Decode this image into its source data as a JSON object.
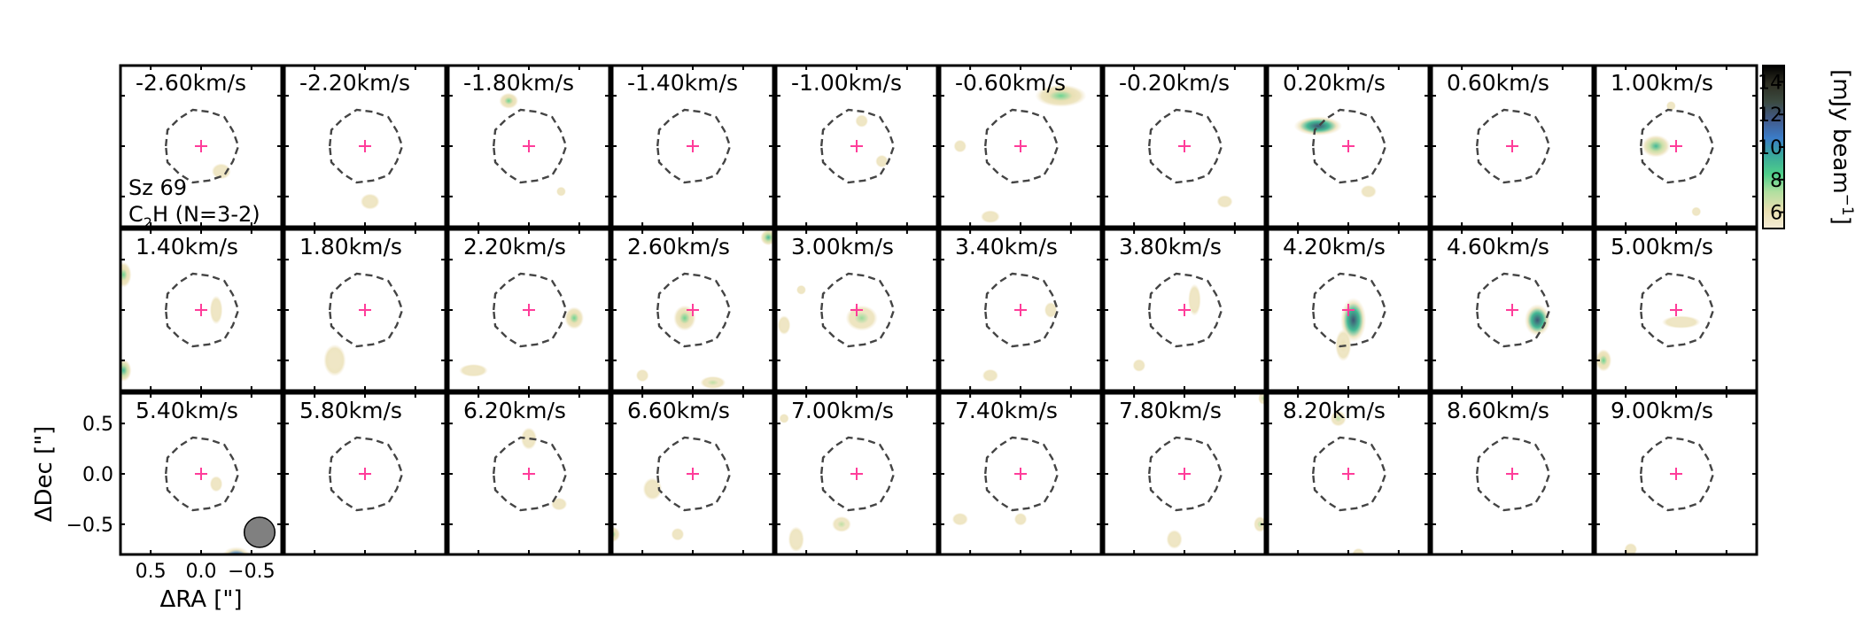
{
  "figure": {
    "source_name": "Sz 69",
    "molecule_main": "C",
    "molecule_sub": "2",
    "molecule_rest": "H (N=3-2)"
  },
  "chart_data": {
    "type": "heatmap",
    "description_series": "channel maps",
    "units_label": "km/s",
    "channels": [
      "-2.60",
      "-2.20",
      "-1.80",
      "-1.40",
      "-1.00",
      "-0.60",
      "-0.20",
      "0.20",
      "0.60",
      "1.00",
      "1.40",
      "1.80",
      "2.20",
      "2.60",
      "3.00",
      "3.40",
      "3.80",
      "4.20",
      "4.60",
      "5.00",
      "5.40",
      "5.80",
      "6.20",
      "6.60",
      "7.00",
      "7.40",
      "7.80",
      "8.20",
      "8.60",
      "9.00"
    ],
    "grid": {
      "rows": 3,
      "cols": 10
    },
    "xlabel": "ΔRA [\"]",
    "ylabel": "ΔDec [\"]",
    "xticks": [
      "0.5",
      "0.0",
      "−0.5"
    ],
    "xtick_values": [
      0.5,
      0.0,
      -0.5
    ],
    "yticks": [
      "0.5",
      "0.0",
      "−0.5"
    ],
    "ytick_values": [
      0.5,
      0.0,
      -0.5
    ],
    "xlim": [
      0.8,
      -0.8
    ],
    "ylim": [
      -0.8,
      0.8
    ],
    "colorbar": {
      "label": "[mJy beam",
      "label_sup": "−1",
      "label_end": "]",
      "ticks": [
        "6",
        "8",
        "10",
        "12",
        "14"
      ],
      "tick_values": [
        6,
        8,
        10,
        12,
        14
      ],
      "range": [
        5,
        15
      ],
      "colors": [
        "#f5ecd6",
        "#e8dfb0",
        "#b3dfa0",
        "#4fcf8a",
        "#3aa99a",
        "#3b7cc8",
        "#425a8a",
        "#3b4a40",
        "#2e2e22",
        "#000000"
      ]
    },
    "beam": {
      "major_arcsec": 0.32,
      "minor_arcsec": 0.26
    },
    "mask_color": "#444444",
    "center_marker_color": "#ff3d9a",
    "emission_blobs": [
      [
        {
          "x": -0.2,
          "y": -0.25,
          "peak": 5.5,
          "sx": 0.06,
          "sy": 0.05
        }
      ],
      [
        {
          "x": -0.05,
          "y": -0.55,
          "peak": 5.5,
          "sx": 0.06,
          "sy": 0.05
        }
      ],
      [
        {
          "x": 0.2,
          "y": 0.45,
          "peak": 8,
          "sx": 0.06,
          "sy": 0.05
        },
        {
          "x": -0.32,
          "y": -0.45,
          "peak": 5.5,
          "sx": 0.03,
          "sy": 0.03
        }
      ],
      [],
      [
        {
          "x": -0.25,
          "y": -0.15,
          "peak": 5.5,
          "sx": 0.04,
          "sy": 0.04
        },
        {
          "x": -0.05,
          "y": 0.25,
          "peak": 5.5,
          "sx": 0.04,
          "sy": 0.04
        }
      ],
      [
        {
          "x": -0.4,
          "y": 0.5,
          "peak": 8,
          "sx": 0.16,
          "sy": 0.07
        },
        {
          "x": 0.6,
          "y": 0.0,
          "peak": 5.5,
          "sx": 0.04,
          "sy": 0.04
        },
        {
          "x": 0.3,
          "y": -0.7,
          "peak": 5.5,
          "sx": 0.06,
          "sy": 0.04
        }
      ],
      [
        {
          "x": -0.4,
          "y": -0.55,
          "peak": 5.5,
          "sx": 0.05,
          "sy": 0.04
        }
      ],
      [
        {
          "x": 0.3,
          "y": 0.2,
          "peak": 12,
          "sx": 0.15,
          "sy": 0.06
        },
        {
          "x": -0.2,
          "y": -0.45,
          "peak": 5.5,
          "sx": 0.05,
          "sy": 0.04
        }
      ],
      [],
      [
        {
          "x": 0.2,
          "y": 0.0,
          "peak": 9,
          "sx": 0.09,
          "sy": 0.07
        },
        {
          "x": 0.05,
          "y": 0.4,
          "peak": 5.5,
          "sx": 0.03,
          "sy": 0.03
        },
        {
          "x": -0.2,
          "y": -0.65,
          "peak": 5.5,
          "sx": 0.03,
          "sy": 0.03
        }
      ],
      [
        {
          "x": 0.77,
          "y": 0.35,
          "peak": 8,
          "sx": 0.05,
          "sy": 0.08
        },
        {
          "x": 0.77,
          "y": -0.6,
          "peak": 9,
          "sx": 0.05,
          "sy": 0.07
        },
        {
          "x": -0.15,
          "y": 0.0,
          "peak": 5.5,
          "sx": 0.04,
          "sy": 0.09
        }
      ],
      [
        {
          "x": 0.3,
          "y": -0.5,
          "peak": 5.5,
          "sx": 0.07,
          "sy": 0.1
        }
      ],
      [
        {
          "x": -0.45,
          "y": -0.08,
          "peak": 8,
          "sx": 0.06,
          "sy": 0.07
        },
        {
          "x": 0.55,
          "y": -0.6,
          "peak": 5.5,
          "sx": 0.09,
          "sy": 0.04
        }
      ],
      [
        {
          "x": 0.08,
          "y": -0.08,
          "peak": 8,
          "sx": 0.07,
          "sy": 0.08
        },
        {
          "x": -0.75,
          "y": 0.72,
          "peak": 9,
          "sx": 0.05,
          "sy": 0.05
        },
        {
          "x": -0.2,
          "y": -0.72,
          "peak": 7,
          "sx": 0.08,
          "sy": 0.04
        },
        {
          "x": 0.5,
          "y": -0.65,
          "peak": 5.5,
          "sx": 0.04,
          "sy": 0.04
        }
      ],
      [
        {
          "x": -0.05,
          "y": -0.08,
          "peak": 7.5,
          "sx": 0.1,
          "sy": 0.08
        },
        {
          "x": 0.72,
          "y": -0.15,
          "peak": 5.5,
          "sx": 0.04,
          "sy": 0.06
        },
        {
          "x": 0.55,
          "y": 0.2,
          "peak": 5.5,
          "sx": 0.03,
          "sy": 0.03
        }
      ],
      [
        {
          "x": -0.3,
          "y": 0.0,
          "peak": 5.5,
          "sx": 0.04,
          "sy": 0.05
        },
        {
          "x": 0.3,
          "y": -0.65,
          "peak": 5.5,
          "sx": 0.05,
          "sy": 0.04
        }
      ],
      [
        {
          "x": -0.1,
          "y": 0.1,
          "peak": 5.5,
          "sx": 0.04,
          "sy": 0.1
        },
        {
          "x": 0.45,
          "y": -0.55,
          "peak": 5.5,
          "sx": 0.04,
          "sy": 0.04
        }
      ],
      [
        {
          "x": -0.05,
          "y": -0.1,
          "peak": 12,
          "sx": 0.08,
          "sy": 0.14
        },
        {
          "x": 0.05,
          "y": -0.35,
          "peak": 6,
          "sx": 0.05,
          "sy": 0.1
        }
      ],
      [
        {
          "x": -0.25,
          "y": -0.1,
          "peak": 12,
          "sx": 0.08,
          "sy": 0.1
        }
      ],
      [
        {
          "x": -0.05,
          "y": -0.12,
          "peak": 5.5,
          "sx": 0.12,
          "sy": 0.04
        },
        {
          "x": 0.72,
          "y": -0.5,
          "peak": 8,
          "sx": 0.05,
          "sy": 0.07
        }
      ],
      [
        {
          "x": -0.15,
          "y": -0.1,
          "peak": 5.5,
          "sx": 0.04,
          "sy": 0.05
        },
        {
          "x": -0.35,
          "y": -0.85,
          "peak": 14,
          "sx": 0.1,
          "sy": 0.08
        }
      ],
      [],
      [
        {
          "x": 0.0,
          "y": 0.35,
          "peak": 5.5,
          "sx": 0.05,
          "sy": 0.07
        },
        {
          "x": -0.3,
          "y": -0.3,
          "peak": 5.5,
          "sx": 0.05,
          "sy": 0.04
        }
      ],
      [
        {
          "x": 0.4,
          "y": -0.15,
          "peak": 5.5,
          "sx": 0.06,
          "sy": 0.07
        },
        {
          "x": 0.8,
          "y": -0.6,
          "peak": 8,
          "sx": 0.05,
          "sy": 0.05
        },
        {
          "x": 0.15,
          "y": -0.6,
          "peak": 5.5,
          "sx": 0.04,
          "sy": 0.04
        }
      ],
      [
        {
          "x": 0.15,
          "y": -0.5,
          "peak": 7,
          "sx": 0.06,
          "sy": 0.05
        },
        {
          "x": 0.6,
          "y": -0.65,
          "peak": 5.5,
          "sx": 0.05,
          "sy": 0.08
        },
        {
          "x": 0.72,
          "y": 0.55,
          "peak": 5.5,
          "sx": 0.03,
          "sy": 0.03
        }
      ],
      [
        {
          "x": 0.6,
          "y": -0.45,
          "peak": 5.5,
          "sx": 0.05,
          "sy": 0.04
        },
        {
          "x": 0.0,
          "y": -0.45,
          "peak": 5.5,
          "sx": 0.04,
          "sy": 0.04
        }
      ],
      [
        {
          "x": -0.78,
          "y": 0.75,
          "peak": 7,
          "sx": 0.03,
          "sy": 0.04
        },
        {
          "x": 0.1,
          "y": -0.65,
          "peak": 5.5,
          "sx": 0.05,
          "sy": 0.06
        },
        {
          "x": -0.75,
          "y": -0.5,
          "peak": 7,
          "sx": 0.04,
          "sy": 0.05
        }
      ],
      [
        {
          "x": 0.1,
          "y": 0.55,
          "peak": 7,
          "sx": 0.05,
          "sy": 0.05
        },
        {
          "x": -0.1,
          "y": -0.8,
          "peak": 5.5,
          "sx": 0.04,
          "sy": 0.04
        }
      ],
      [],
      [
        {
          "x": 0.45,
          "y": -0.75,
          "peak": 5.5,
          "sx": 0.04,
          "sy": 0.04
        }
      ]
    ]
  }
}
